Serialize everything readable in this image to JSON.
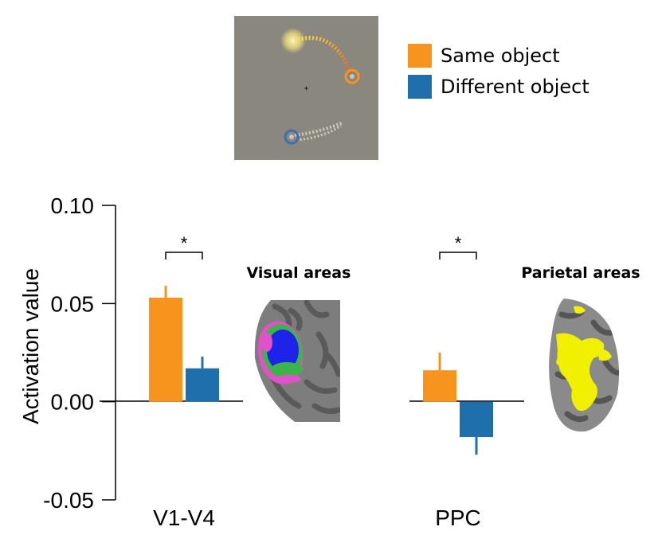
{
  "legend": {
    "items": [
      {
        "label": "Same object",
        "color": "#f7941d"
      },
      {
        "label": "Different object",
        "color": "#1f6fad"
      }
    ]
  },
  "stimulus": {
    "background_color": "#8a877f",
    "same_marker_color": "#f7941d",
    "different_marker_color": "#3f6db3"
  },
  "regions": {
    "visual_title": "Visual areas",
    "parietal_title": "Parietal areas"
  },
  "chart_data": {
    "type": "bar",
    "ylabel": "Activation value",
    "xlabel": "",
    "ylim": [
      -0.05,
      0.1
    ],
    "yticks": [
      "0.10",
      "0.05",
      "0.00",
      "-0.05"
    ],
    "categories": [
      "V1-V4",
      "PPC"
    ],
    "series": [
      {
        "name": "Same object",
        "color": "#f7941d",
        "values": [
          0.053,
          0.016
        ],
        "errors": [
          0.006,
          0.009
        ]
      },
      {
        "name": "Different object",
        "color": "#1f6fad",
        "values": [
          0.017,
          -0.018
        ],
        "errors": [
          0.006,
          0.009
        ]
      }
    ],
    "significance": [
      "*",
      "*"
    ]
  }
}
